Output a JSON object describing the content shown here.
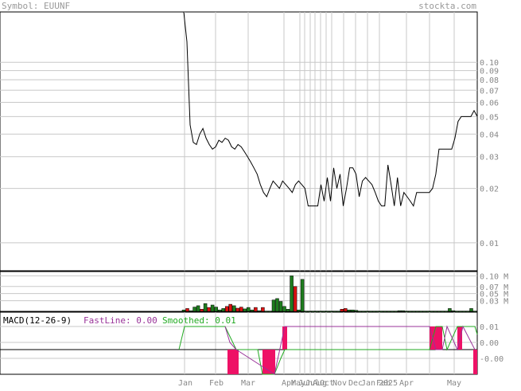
{
  "header": {
    "symbol_label": "Symbol: EUUNF",
    "site": "stockta.com"
  },
  "colors": {
    "grid": "#c8c8c8",
    "text_gray": "#888888",
    "header_gray": "#999999",
    "price_line": "#000000",
    "vol_up": "#1e7d1e",
    "vol_down": "#dd1111",
    "macd_fast": "#993399",
    "macd_smoothed": "#22aa22",
    "macd_hist": "#ee1166"
  },
  "chart_data": [
    {
      "type": "line",
      "name": "price",
      "y_scale": "log",
      "ylim": [
        0.007,
        0.19
      ],
      "y_ticks": [
        "0.10",
        "0.09",
        "0.08",
        "0.07",
        "0.06",
        "0.05",
        "0.04",
        "0.03",
        "0.02",
        "0.01"
      ],
      "x_labels": [
        "Jan",
        "Feb",
        "Mar",
        "Apr",
        "May",
        "Jun",
        "Jul",
        "Aug",
        "Oct",
        "Nov",
        "Dec",
        "Jan",
        "Feb",
        "2025",
        "Apr",
        "May"
      ],
      "values": [
        0.19,
        0.13,
        0.045,
        0.036,
        0.035,
        0.04,
        0.043,
        0.038,
        0.035,
        0.033,
        0.034,
        0.037,
        0.036,
        0.038,
        0.037,
        0.034,
        0.033,
        0.035,
        0.034,
        0.032,
        0.03,
        0.028,
        0.026,
        0.024,
        0.021,
        0.019,
        0.018,
        0.02,
        0.022,
        0.021,
        0.02,
        0.022,
        0.021,
        0.02,
        0.019,
        0.021,
        0.022,
        0.021,
        0.02,
        0.016,
        0.016,
        0.016,
        0.016,
        0.021,
        0.017,
        0.023,
        0.017,
        0.026,
        0.02,
        0.024,
        0.016,
        0.02,
        0.026,
        0.026,
        0.024,
        0.018,
        0.022,
        0.023,
        0.022,
        0.021,
        0.019,
        0.017,
        0.016,
        0.016,
        0.027,
        0.021,
        0.016,
        0.023,
        0.016,
        0.019,
        0.018,
        0.017,
        0.016,
        0.019,
        0.019,
        0.019,
        0.019,
        0.019,
        0.02,
        0.024,
        0.033,
        0.033,
        0.033,
        0.033,
        0.033,
        0.038,
        0.047,
        0.05,
        0.05,
        0.05,
        0.05,
        0.054,
        0.05
      ]
    },
    {
      "type": "bar",
      "name": "volume",
      "y_ticks": [
        "0.10 M",
        "0.07 M",
        "0.05 M",
        "0.03 M"
      ],
      "ylim": [
        0,
        0.112
      ],
      "values": [
        0.004,
        0.008,
        0.002,
        0.012,
        0.016,
        0.006,
        0.022,
        0.011,
        0.018,
        0.012,
        0.004,
        0.008,
        0.014,
        0.02,
        0.016,
        0.009,
        0.012,
        0.007,
        0.011,
        0.004,
        0.011,
        0.002,
        0.011,
        0.001,
        0.001,
        0.032,
        0.036,
        0.028,
        0.014,
        0.006,
        0.1,
        0.07,
        0.004,
        0.09,
        0.001,
        0.001,
        0.001,
        0.001,
        0.001,
        0.001,
        0.001,
        0.001,
        0.001,
        0.001,
        0.006,
        0.008,
        0.004,
        0.004,
        0.003,
        0.001,
        0.001,
        0.001,
        0.001,
        0.001,
        0.001,
        0.001,
        0.001,
        0.001,
        0.001,
        0.001,
        0.002,
        0.002,
        0.001,
        0.001,
        0.001,
        0.001,
        0.001,
        0.001,
        0.001,
        0.001,
        0.001,
        0.001,
        0.001,
        0.001,
        0.008,
        0.002,
        0.001,
        0.001,
        0.001,
        0.001,
        0.008,
        0.001
      ],
      "up": [
        1,
        0,
        1,
        1,
        1,
        0,
        1,
        0,
        1,
        1,
        1,
        1,
        0,
        0,
        1,
        0,
        0,
        1,
        1,
        1,
        0,
        1,
        0,
        1,
        1,
        1,
        1,
        1,
        1,
        1,
        1,
        0,
        1,
        1,
        1,
        1,
        1,
        1,
        1,
        1,
        1,
        1,
        1,
        1,
        0,
        0,
        1,
        1,
        1,
        1,
        1,
        1,
        1,
        1,
        1,
        1,
        1,
        1,
        1,
        1,
        1,
        1,
        1,
        1,
        1,
        1,
        1,
        1,
        1,
        1,
        1,
        1,
        1,
        1,
        1,
        1,
        1,
        1,
        1,
        1,
        1,
        1
      ]
    },
    {
      "type": "line",
      "name": "macd",
      "title": "MACD(12-26-9)",
      "fast_label": "FastLine: 0.00",
      "smoothed_label": "Smoothed: 0.01",
      "y_ticks": [
        "0.01",
        "0.00",
        "-0.00"
      ]
    }
  ]
}
